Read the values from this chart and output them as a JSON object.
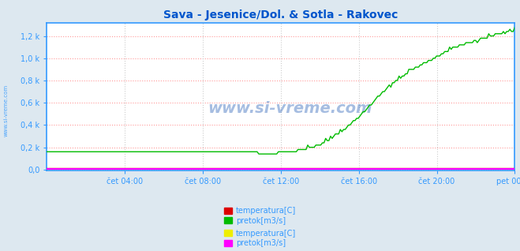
{
  "title": "Sava - Jesenice/Dol. & Sotla - Rakovec",
  "title_color": "#0055cc",
  "title_fontsize": 10,
  "bg_color": "#dde8f0",
  "plot_bg_color": "#ffffff",
  "grid_color_h": "#ff9999",
  "grid_color_v": "#dddddd",
  "grid_linestyle": ":",
  "xlim_hours": [
    0,
    24
  ],
  "ylim_min": -0.01,
  "ylim_max": 1.32,
  "yticks": [
    0.0,
    0.2,
    0.4,
    0.6,
    0.8,
    1.0,
    1.2
  ],
  "ytick_labels": [
    "0,0",
    "0,2 k",
    "0,4 k",
    "0,6 k",
    "0,8 k",
    "1,0 k",
    "1,2 k"
  ],
  "xtick_labels": [
    "čet 04:00",
    "čet 08:00",
    "čet 12:00",
    "čet 16:00",
    "čet 20:00",
    "pet 00:00"
  ],
  "xtick_positions": [
    4,
    8,
    12,
    16,
    20,
    24
  ],
  "axis_color": "#3399ff",
  "tick_color": "#3399ff",
  "watermark": "www.si-vreme.com",
  "watermark_color": "#0044aa",
  "sava_temp_color": "#dd0000",
  "sava_pretok_color": "#00bb00",
  "sotla_temp_color": "#eeee00",
  "sotla_pretok_color": "#ff00ff",
  "sidebar_color": "#3399ff",
  "legend_items": [
    {
      "label": "temperatura[C]",
      "color": "#dd0000"
    },
    {
      "label": "pretok[m3/s]",
      "color": "#00bb00"
    },
    {
      "label": "temperatura[C]",
      "color": "#eeee00"
    },
    {
      "label": "pretok[m3/s]",
      "color": "#ff00ff"
    }
  ]
}
